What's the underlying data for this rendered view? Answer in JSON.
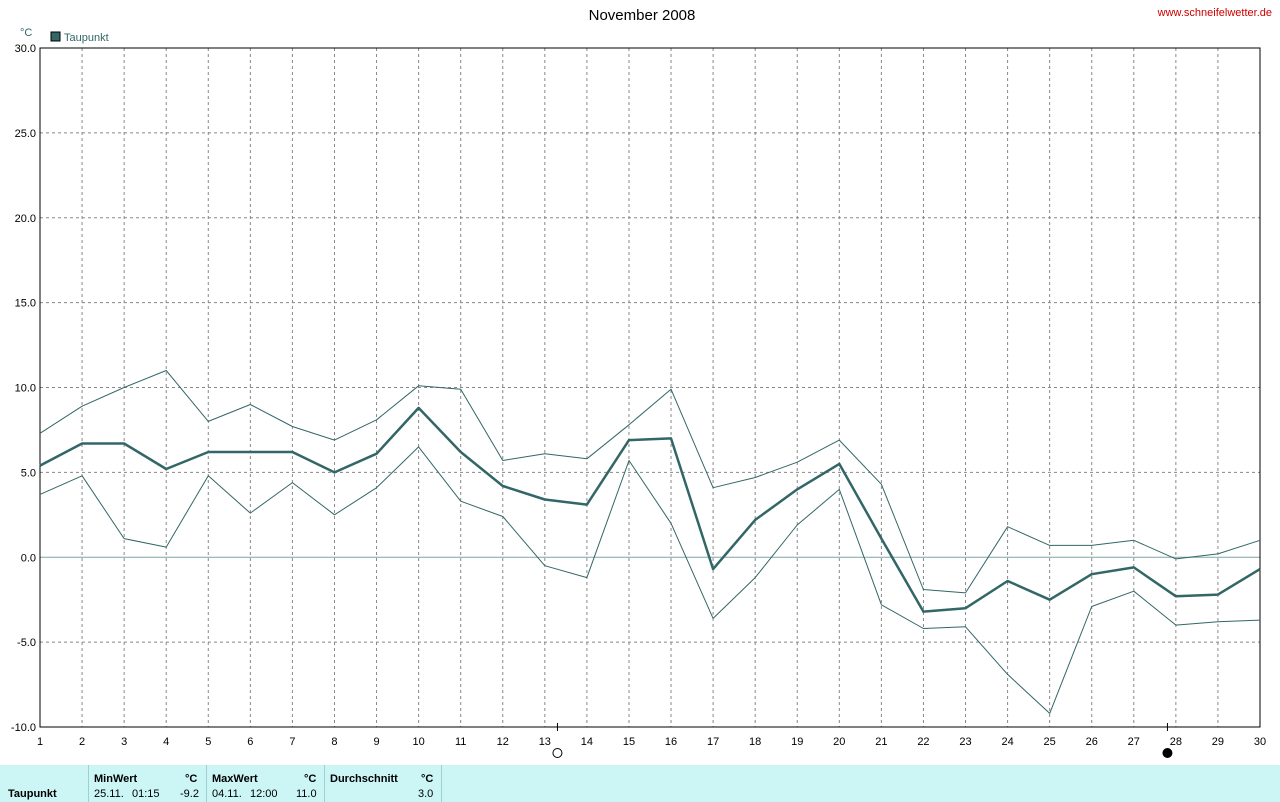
{
  "header": {
    "title": "November 2008",
    "site": "www.schneifelwetter.de",
    "unit": "°C"
  },
  "colors": {
    "series": "#336666",
    "grid": "#888888",
    "site": "#cc0000",
    "stats_bg": "#ccf5f5"
  },
  "chart_data": {
    "type": "line",
    "title": "November 2008",
    "ylabel": "°C",
    "ylim": [
      -10,
      30
    ],
    "yticks": [
      "30.0",
      "25.0",
      "20.0",
      "15.0",
      "10.0",
      "5.0",
      "0.0",
      "-5.0",
      "-10.0"
    ],
    "x": [
      1,
      2,
      3,
      4,
      5,
      6,
      7,
      8,
      9,
      10,
      11,
      12,
      13,
      14,
      15,
      16,
      17,
      18,
      19,
      20,
      21,
      22,
      23,
      24,
      25,
      26,
      27,
      28,
      29,
      30
    ],
    "legend": "top-left",
    "grid": true,
    "series": [
      {
        "name": "Taupunkt",
        "values": [
          5.4,
          6.7,
          6.7,
          5.2,
          6.2,
          6.2,
          6.2,
          5.0,
          6.1,
          8.8,
          6.2,
          4.2,
          3.4,
          3.1,
          6.9,
          7.0,
          -0.7,
          2.2,
          4.0,
          5.5,
          1.1,
          -3.2,
          -3.0,
          -1.4,
          -2.5,
          -1.0,
          -0.6,
          -2.3,
          -2.2,
          -0.7
        ]
      },
      {
        "role": "max",
        "values": [
          7.3,
          8.9,
          10.0,
          11.0,
          8.0,
          9.0,
          7.7,
          6.9,
          8.1,
          10.1,
          9.9,
          5.7,
          6.1,
          5.8,
          7.8,
          9.9,
          4.1,
          4.7,
          5.6,
          6.9,
          4.3,
          -1.9,
          -2.1,
          1.8,
          0.7,
          0.7,
          1.0,
          -0.1,
          0.2,
          1.0
        ]
      },
      {
        "role": "min",
        "values": [
          3.7,
          4.8,
          1.1,
          0.6,
          4.8,
          2.6,
          4.4,
          2.5,
          4.1,
          6.5,
          3.3,
          2.4,
          -0.5,
          -1.2,
          5.7,
          2.0,
          -3.6,
          -1.2,
          1.9,
          4.0,
          -2.8,
          -4.2,
          -4.1,
          -6.9,
          -9.2,
          -2.9,
          -2.0,
          -4.0,
          -3.8,
          -3.7
        ]
      }
    ],
    "moon_phases": [
      {
        "x": 13.3,
        "phase": "full"
      },
      {
        "x": 27.8,
        "phase": "new"
      }
    ]
  },
  "stats": {
    "row_label": "Taupunkt",
    "min": {
      "header": "MinWert",
      "unit": "°C",
      "date": "25.11.",
      "time": "01:15",
      "value": "-9.2"
    },
    "max": {
      "header": "MaxWert",
      "unit": "°C",
      "date": "04.11.",
      "time": "12:00",
      "value": "11.0"
    },
    "avg": {
      "header": "Durchschnitt",
      "unit": "°C",
      "value": "3.0"
    }
  }
}
